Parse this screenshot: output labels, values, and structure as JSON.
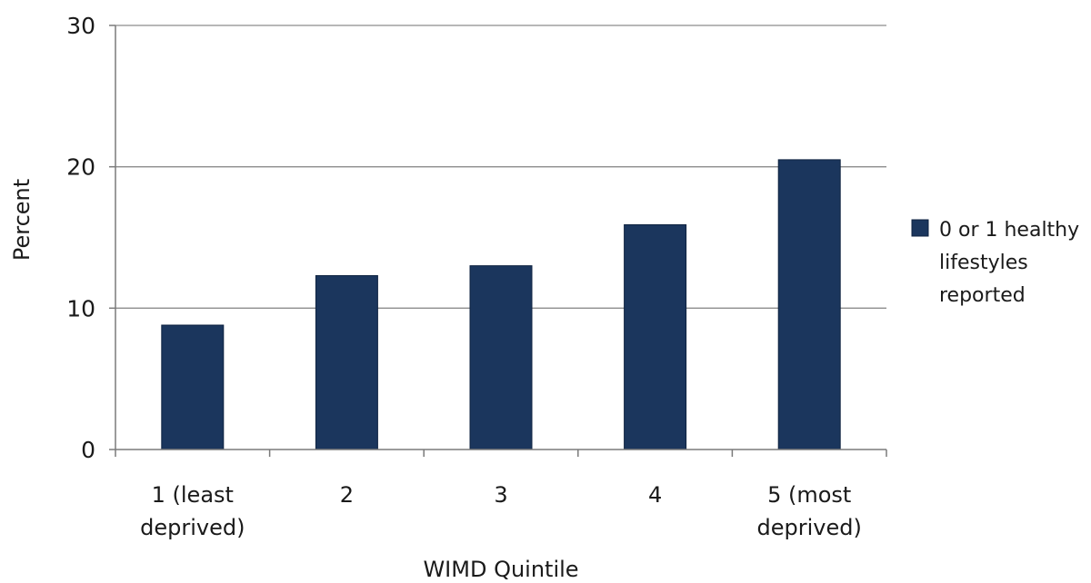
{
  "chart_data": {
    "type": "bar",
    "categories": [
      [
        "1 (least",
        "deprived)"
      ],
      [
        "2"
      ],
      [
        "3"
      ],
      [
        "4"
      ],
      [
        "5 (most",
        "deprived)"
      ]
    ],
    "series": [
      {
        "name": [
          "0 or 1 healthy",
          "lifestyles",
          "reported"
        ],
        "values": [
          8.8,
          12.3,
          13.0,
          15.9,
          20.5
        ],
        "color": "#1b365d"
      }
    ],
    "xlabel": "WIMD Quintile",
    "ylabel": "Percent",
    "ylim": [
      0,
      30
    ],
    "yticks": [
      0,
      10,
      20,
      30
    ],
    "grid": true,
    "legend_position": "right"
  }
}
